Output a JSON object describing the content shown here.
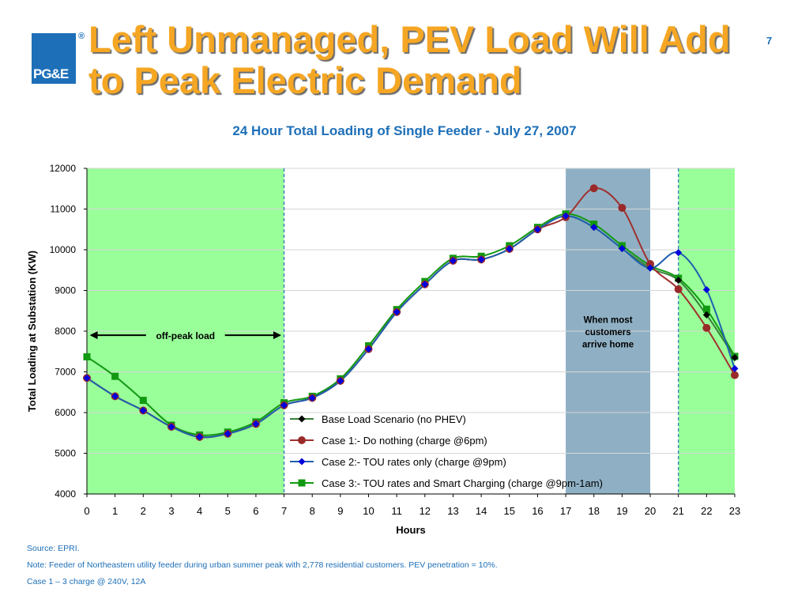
{
  "slide": {
    "title": "Left Unmanaged, PEV Load Will Add to Peak Electric Demand",
    "page_number": "7",
    "logo_text": "PG&E",
    "logo_mark": "®"
  },
  "chart_data": {
    "type": "line",
    "title": "24 Hour Total Loading of Single Feeder - July 27, 2007",
    "xlabel": "Hours",
    "ylabel": "Total Loading at Substation (KW)",
    "xlim": [
      0,
      23
    ],
    "ylim": [
      4000,
      12000
    ],
    "x_ticks": [
      0,
      1,
      2,
      3,
      4,
      5,
      6,
      7,
      8,
      9,
      10,
      11,
      12,
      13,
      14,
      15,
      16,
      17,
      18,
      19,
      20,
      21,
      22,
      23
    ],
    "y_ticks": [
      4000,
      5000,
      6000,
      7000,
      8000,
      9000,
      10000,
      11000,
      12000
    ],
    "grid": true,
    "legend_position": "lower-center",
    "shaded_regions": [
      {
        "x_start": 0,
        "x_end": 7,
        "color": "#99ff99",
        "kind": "off-peak"
      },
      {
        "x_start": 17,
        "x_end": 20,
        "color": "#8fb0c4",
        "kind": "arrival"
      },
      {
        "x_start": 21,
        "x_end": 23,
        "color": "#99ff99",
        "kind": "off-peak"
      }
    ],
    "dashed_lines": [
      7,
      21
    ],
    "annotations": {
      "off_peak": "off-peak load",
      "arrival_line1": "When most",
      "arrival_line2": "customers",
      "arrival_line3": "arrive home"
    },
    "series": [
      {
        "name": "Base Load Scenario (no PHEV)",
        "color": "#000000",
        "line_color": "#3a7f3a",
        "marker": "diamond",
        "x": [
          0,
          1,
          2,
          3,
          4,
          5,
          6,
          7,
          8,
          9,
          10,
          11,
          12,
          13,
          14,
          15,
          16,
          17,
          18,
          19,
          20,
          21,
          22,
          23
        ],
        "y": [
          6850,
          6400,
          6050,
          5650,
          5400,
          5480,
          5720,
          6180,
          6360,
          6780,
          7560,
          8470,
          9150,
          9730,
          9760,
          10020,
          10500,
          10830,
          10550,
          10030,
          9550,
          9250,
          8400,
          7350
        ]
      },
      {
        "name": "Case 1:- Do nothing (charge @6pm)",
        "color": "#ff0000",
        "line_color": "#a03030",
        "marker": "circle",
        "x": [
          0,
          1,
          2,
          3,
          4,
          5,
          6,
          7,
          8,
          9,
          10,
          11,
          12,
          13,
          14,
          15,
          16,
          17,
          18,
          19,
          20,
          21,
          22,
          23
        ],
        "y": [
          6850,
          6400,
          6050,
          5650,
          5400,
          5480,
          5720,
          6180,
          6360,
          6780,
          7560,
          8470,
          9150,
          9730,
          9760,
          10020,
          10500,
          10800,
          11510,
          11030,
          9650,
          9030,
          8080,
          6920
        ]
      },
      {
        "name": "Case 2:- TOU rates only (charge @9pm)",
        "color": "#0000ff",
        "line_color": "#1f5fb0",
        "marker": "diamond",
        "x": [
          0,
          1,
          2,
          3,
          4,
          5,
          6,
          7,
          8,
          9,
          10,
          11,
          12,
          13,
          14,
          15,
          16,
          17,
          18,
          19,
          20,
          21,
          22,
          23
        ],
        "y": [
          6850,
          6400,
          6050,
          5650,
          5400,
          5480,
          5720,
          6180,
          6360,
          6780,
          7560,
          8470,
          9150,
          9730,
          9760,
          10020,
          10500,
          10830,
          10550,
          10030,
          9550,
          9930,
          9020,
          7080
        ]
      },
      {
        "name": "Case 3:- TOU rates and Smart Charging (charge @9pm-1am)",
        "color": "#119911",
        "line_color": "#119911",
        "marker": "square",
        "x": [
          0,
          1,
          2,
          3,
          4,
          5,
          6,
          7,
          8,
          9,
          10,
          11,
          12,
          13,
          14,
          15,
          16,
          17,
          18,
          19,
          20,
          21,
          22,
          23
        ],
        "y": [
          7370,
          6890,
          6300,
          5690,
          5450,
          5520,
          5770,
          6240,
          6400,
          6830,
          7640,
          8530,
          9220,
          9790,
          9840,
          10100,
          10550,
          10880,
          10630,
          10100,
          9610,
          9300,
          8540,
          7380
        ]
      }
    ]
  },
  "footnotes": {
    "source": "Source: EPRI.",
    "note": "Note: Feeder of Northeastern utility feeder during urban summer peak with 2,778 residential customers.  PEV penetration = 10%.",
    "case": "Case 1 – 3 charge @ 240V, 12A"
  }
}
